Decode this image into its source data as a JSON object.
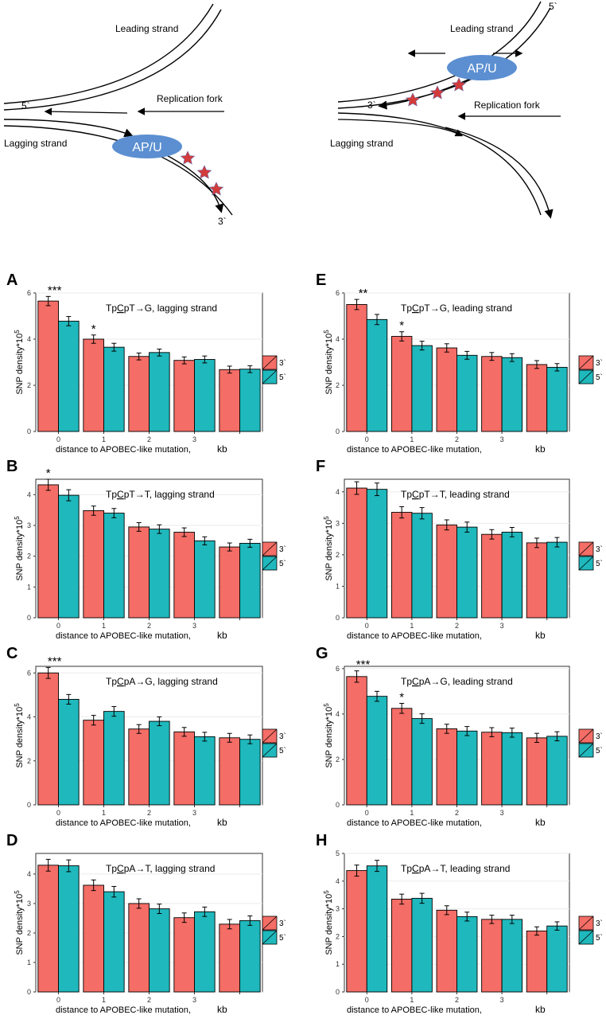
{
  "diagram": {
    "left": {
      "leading_label": "Leading strand",
      "lagging_label": "Lagging strand",
      "fork_label": "Replication fork",
      "enzyme_label": "AP/U",
      "five_prime": "5`",
      "three_prime": "3`"
    },
    "right": {
      "leading_label": "Leading strand",
      "lagging_label": "Lagging strand",
      "fork_label": "Replication fork",
      "enzyme_label": "AP/U",
      "five_prime": "5`",
      "three_prime": "3`"
    },
    "colors": {
      "enzyme": "#5b8fd1",
      "star": "#d23b3b"
    }
  },
  "colors": {
    "series_3": "#f46d66",
    "series_5": "#1fb8bc",
    "panel_bg": "#ffffff",
    "grid": "#ebebeb"
  },
  "axis": {
    "ylabel_main": "SNP density*10",
    "ylabel_exp": "5",
    "xlabel": "distance to APOBEC-like mutation,",
    "xunit": "kb"
  },
  "legend": {
    "entries": [
      "3`",
      "5`"
    ]
  },
  "chart_data": [
    {
      "panel": "A",
      "type": "bar",
      "title": "TpCpT→G, lagging strand",
      "underline_char": "C",
      "categories": [
        "0",
        "1",
        "2",
        "3",
        "4"
      ],
      "tick_labels": [
        "0",
        "1",
        "2",
        "3",
        ""
      ],
      "ylim": [
        0,
        6
      ],
      "yticks": [
        0,
        2,
        4,
        6
      ],
      "series": [
        {
          "name": "3`",
          "values": [
            5.65,
            4.0,
            3.25,
            3.08,
            2.68
          ],
          "err": [
            0.2,
            0.18,
            0.15,
            0.15,
            0.15
          ]
        },
        {
          "name": "5`",
          "values": [
            4.78,
            3.65,
            3.42,
            3.12,
            2.7
          ],
          "err": [
            0.2,
            0.17,
            0.15,
            0.15,
            0.15
          ]
        }
      ],
      "significance": [
        {
          "category": 0,
          "label": "***"
        },
        {
          "category": 1,
          "label": "*"
        }
      ]
    },
    {
      "panel": "B",
      "type": "bar",
      "title": "TpCpT→T, lagging strand",
      "underline_char": "C",
      "categories": [
        "0",
        "1",
        "2",
        "3",
        "4"
      ],
      "tick_labels": [
        "0",
        "1",
        "2",
        "3",
        ""
      ],
      "ylim": [
        0,
        4.5
      ],
      "yticks": [
        0,
        1,
        2,
        3,
        4
      ],
      "series": [
        {
          "name": "3`",
          "values": [
            4.32,
            3.48,
            2.95,
            2.78,
            2.3
          ],
          "err": [
            0.18,
            0.15,
            0.14,
            0.14,
            0.13
          ]
        },
        {
          "name": "5`",
          "values": [
            3.98,
            3.4,
            2.88,
            2.5,
            2.42
          ],
          "err": [
            0.18,
            0.15,
            0.14,
            0.13,
            0.13
          ]
        }
      ],
      "significance": [
        {
          "category": 0,
          "label": "*"
        }
      ]
    },
    {
      "panel": "C",
      "type": "bar",
      "title": "TpCpA→G, lagging strand",
      "underline_char": "C",
      "categories": [
        "0",
        "1",
        "2",
        "3",
        "4"
      ],
      "tick_labels": [
        "0",
        "1",
        "2",
        "3",
        ""
      ],
      "ylim": [
        0,
        6.3
      ],
      "yticks": [
        0,
        2,
        4,
        6
      ],
      "series": [
        {
          "name": "3`",
          "values": [
            6.0,
            3.85,
            3.45,
            3.32,
            3.05
          ],
          "err": [
            0.25,
            0.22,
            0.2,
            0.2,
            0.2
          ]
        },
        {
          "name": "5`",
          "values": [
            4.8,
            4.25,
            3.8,
            3.1,
            2.98
          ],
          "err": [
            0.22,
            0.22,
            0.2,
            0.2,
            0.2
          ]
        }
      ],
      "significance": [
        {
          "category": 0,
          "label": "***"
        }
      ]
    },
    {
      "panel": "D",
      "type": "bar",
      "title": "TpCpA→T, lagging strand",
      "underline_char": "C",
      "categories": [
        "0",
        "1",
        "2",
        "3",
        "4"
      ],
      "tick_labels": [
        "0",
        "1",
        "2",
        "3",
        ""
      ],
      "ylim": [
        0,
        4.7
      ],
      "yticks": [
        0,
        1,
        2,
        3,
        4
      ],
      "series": [
        {
          "name": "3`",
          "values": [
            4.3,
            3.62,
            3.0,
            2.52,
            2.3
          ],
          "err": [
            0.2,
            0.18,
            0.16,
            0.16,
            0.16
          ]
        },
        {
          "name": "5`",
          "values": [
            4.28,
            3.4,
            2.82,
            2.72,
            2.42
          ],
          "err": [
            0.2,
            0.18,
            0.16,
            0.16,
            0.16
          ]
        }
      ],
      "significance": []
    },
    {
      "panel": "E",
      "type": "bar",
      "title": "TpCpT→G, leading strand",
      "underline_char": "C",
      "categories": [
        "0",
        "1",
        "2",
        "3",
        "4"
      ],
      "tick_labels": [
        "0",
        "1",
        "2",
        "3",
        ""
      ],
      "ylim": [
        0,
        6
      ],
      "yticks": [
        0,
        2,
        4,
        6
      ],
      "series": [
        {
          "name": "3`",
          "values": [
            5.5,
            4.12,
            3.62,
            3.25,
            2.9
          ],
          "err": [
            0.22,
            0.2,
            0.18,
            0.17,
            0.17
          ]
        },
        {
          "name": "5`",
          "values": [
            4.85,
            3.72,
            3.3,
            3.2,
            2.78
          ],
          "err": [
            0.22,
            0.19,
            0.17,
            0.17,
            0.16
          ]
        }
      ],
      "significance": [
        {
          "category": 0,
          "label": "**"
        },
        {
          "category": 1,
          "label": "*"
        }
      ]
    },
    {
      "panel": "F",
      "type": "bar",
      "title": "TpCpT→T, leading strand",
      "underline_char": "C",
      "categories": [
        "0",
        "1",
        "2",
        "3",
        "4"
      ],
      "tick_labels": [
        "0",
        "1",
        "2",
        "3",
        ""
      ],
      "ylim": [
        0,
        4.4
      ],
      "yticks": [
        0,
        1,
        2,
        3,
        4
      ],
      "series": [
        {
          "name": "3`",
          "values": [
            4.12,
            3.35,
            2.95,
            2.65,
            2.38
          ],
          "err": [
            0.2,
            0.18,
            0.16,
            0.15,
            0.15
          ]
        },
        {
          "name": "5`",
          "values": [
            4.08,
            3.32,
            2.88,
            2.72,
            2.4
          ],
          "err": [
            0.2,
            0.18,
            0.16,
            0.15,
            0.15
          ]
        }
      ],
      "significance": []
    },
    {
      "panel": "G",
      "type": "bar",
      "title": "TpCpA→G, leading strand",
      "underline_char": "C",
      "categories": [
        "0",
        "1",
        "2",
        "3",
        "4"
      ],
      "tick_labels": [
        "0",
        "1",
        "2",
        "3",
        ""
      ],
      "ylim": [
        0,
        6.1
      ],
      "yticks": [
        0,
        2,
        4,
        6
      ],
      "series": [
        {
          "name": "3`",
          "values": [
            5.65,
            4.25,
            3.35,
            3.2,
            2.95
          ],
          "err": [
            0.25,
            0.22,
            0.2,
            0.2,
            0.2
          ]
        },
        {
          "name": "5`",
          "values": [
            4.78,
            3.8,
            3.25,
            3.18,
            3.02
          ],
          "err": [
            0.22,
            0.21,
            0.2,
            0.2,
            0.2
          ]
        }
      ],
      "significance": [
        {
          "category": 0,
          "label": "***"
        },
        {
          "category": 1,
          "label": "*"
        }
      ]
    },
    {
      "panel": "H",
      "type": "bar",
      "title": "TpCpA→T, leading strand",
      "underline_char": "C",
      "categories": [
        "0",
        "1",
        "2",
        "3",
        "4"
      ],
      "tick_labels": [
        "0",
        "1",
        "2",
        "3",
        ""
      ],
      "ylim": [
        0,
        5
      ],
      "yticks": [
        0,
        1,
        2,
        3,
        4,
        5
      ],
      "series": [
        {
          "name": "3`",
          "values": [
            4.38,
            3.35,
            2.95,
            2.62,
            2.2
          ],
          "err": [
            0.2,
            0.18,
            0.16,
            0.15,
            0.15
          ]
        },
        {
          "name": "5`",
          "values": [
            4.55,
            3.38,
            2.72,
            2.62,
            2.38
          ],
          "err": [
            0.2,
            0.18,
            0.16,
            0.15,
            0.15
          ]
        }
      ],
      "significance": []
    }
  ]
}
